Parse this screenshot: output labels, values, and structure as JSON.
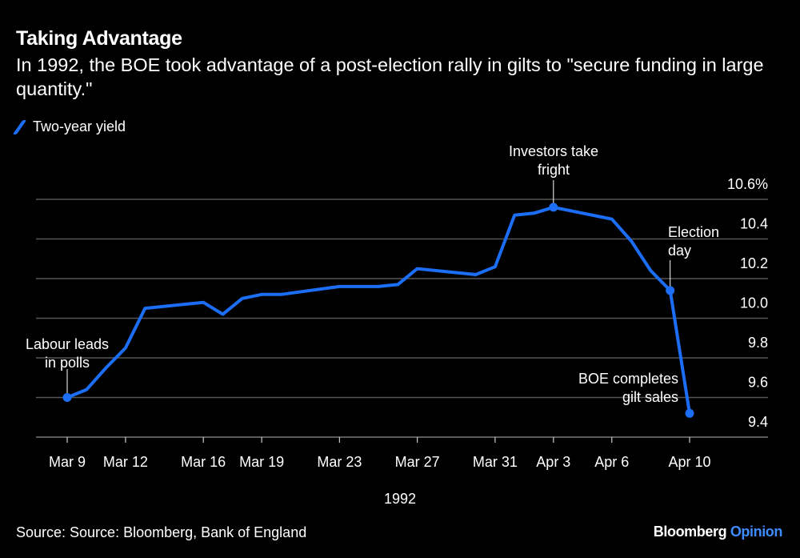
{
  "title": "Taking Advantage",
  "subtitle": "In 1992, the BOE took advantage of a post-election rally in gilts to \"secure funding in large quantity.\"",
  "source": "Source: Source: Bloomberg, Bank of England",
  "logo": {
    "brand": "Bloomberg",
    "section": "Opinion"
  },
  "colors": {
    "series": "#1b6ef5",
    "background": "#000000",
    "grid": "#555555",
    "logo_accent": "#3d8bff"
  },
  "chart_data": {
    "type": "line",
    "title": "Taking Advantage",
    "xlabel": "1992",
    "ylabel": "",
    "ylim": [
      9.4,
      10.6
    ],
    "y_ticks": [
      "10.6%",
      "10.4",
      "10.2",
      "10.0",
      "9.8",
      "9.6",
      "9.4"
    ],
    "y_tick_values": [
      10.6,
      10.4,
      10.2,
      10.0,
      9.8,
      9.6,
      9.4
    ],
    "x_range": [
      "1992-03-09",
      "1992-04-10"
    ],
    "x_ticks": [
      {
        "label": "Mar 9",
        "date": "1992-03-09"
      },
      {
        "label": "Mar 12",
        "date": "1992-03-12"
      },
      {
        "label": "Mar 16",
        "date": "1992-03-16"
      },
      {
        "label": "Mar 19",
        "date": "1992-03-19"
      },
      {
        "label": "Mar 23",
        "date": "1992-03-23"
      },
      {
        "label": "Mar 27",
        "date": "1992-03-27"
      },
      {
        "label": "Mar 31",
        "date": "1992-03-31"
      },
      {
        "label": "Apr 3",
        "date": "1992-04-03"
      },
      {
        "label": "Apr 6",
        "date": "1992-04-06"
      },
      {
        "label": "Apr 10",
        "date": "1992-04-10"
      }
    ],
    "grid": true,
    "legend": "top-left",
    "series": [
      {
        "name": "Two-year yield",
        "x": [
          "1992-03-09",
          "1992-03-10",
          "1992-03-11",
          "1992-03-12",
          "1992-03-13",
          "1992-03-16",
          "1992-03-17",
          "1992-03-18",
          "1992-03-19",
          "1992-03-20",
          "1992-03-23",
          "1992-03-24",
          "1992-03-25",
          "1992-03-26",
          "1992-03-27",
          "1992-03-30",
          "1992-03-31",
          "1992-04-01",
          "1992-04-02",
          "1992-04-03",
          "1992-04-06",
          "1992-04-07",
          "1992-04-08",
          "1992-04-09",
          "1992-04-10"
        ],
        "y": [
          9.6,
          9.64,
          9.75,
          9.85,
          10.05,
          10.08,
          10.02,
          10.1,
          10.12,
          10.12,
          10.16,
          10.16,
          10.16,
          10.17,
          10.25,
          10.22,
          10.26,
          10.52,
          10.53,
          10.56,
          10.5,
          10.39,
          10.24,
          10.14,
          9.52
        ]
      }
    ],
    "annotations": [
      {
        "lines": [
          "Labour leads",
          "in polls"
        ],
        "date": "1992-03-09",
        "value": 9.6
      },
      {
        "lines": [
          "Investors take",
          "fright"
        ],
        "date": "1992-04-03",
        "value": 10.56
      },
      {
        "lines": [
          "Election",
          "day"
        ],
        "date": "1992-04-09",
        "value": 10.14
      },
      {
        "lines": [
          "BOE completes",
          "gilt sales"
        ],
        "date": "1992-04-10",
        "value": 9.52
      }
    ]
  }
}
